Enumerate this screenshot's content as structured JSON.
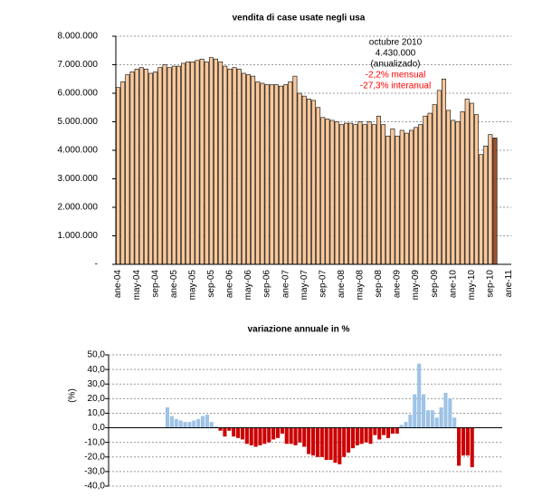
{
  "chart_data": [
    {
      "type": "bar",
      "title": "vendita di case usate negli usa",
      "categories": [
        "ane-04",
        null,
        null,
        null,
        "may-04",
        null,
        null,
        null,
        "sep-04",
        null,
        null,
        null,
        "ane-05",
        null,
        null,
        null,
        "may-05",
        null,
        null,
        null,
        "sep-05",
        null,
        null,
        null,
        "ane-06",
        null,
        null,
        null,
        "may-06",
        null,
        null,
        null,
        "sep-06",
        null,
        null,
        null,
        "ane-07",
        null,
        null,
        null,
        "may-07",
        null,
        null,
        null,
        "sep-07",
        null,
        null,
        null,
        "ane-08",
        null,
        null,
        null,
        "may-08",
        null,
        null,
        null,
        "sep-08",
        null,
        null,
        null,
        "ane-09",
        null,
        null,
        null,
        "may-09",
        null,
        null,
        null,
        "sep-09",
        null,
        null,
        null,
        "ane-10",
        null,
        null,
        null,
        "may-10",
        null,
        null,
        null,
        "sep-10",
        null,
        null,
        null,
        "ane-11"
      ],
      "values": [
        6200000,
        6400000,
        6650000,
        6750000,
        6850000,
        6900000,
        6850000,
        6700000,
        6750000,
        6900000,
        7000000,
        6900000,
        6950000,
        6950000,
        7050000,
        7100000,
        7100000,
        7150000,
        7200000,
        7100000,
        7250000,
        7200000,
        7100000,
        6950000,
        6850000,
        6900000,
        6850000,
        6700000,
        6650000,
        6600000,
        6400000,
        6350000,
        6300000,
        6300000,
        6300000,
        6250000,
        6300000,
        6400000,
        6600000,
        6000000,
        5900000,
        5800000,
        5750000,
        5500000,
        5150000,
        5100000,
        5050000,
        5000000,
        4900000,
        4950000,
        4950000,
        4900000,
        5000000,
        4900000,
        5000000,
        4900000,
        5200000,
        4900000,
        4500000,
        4750000,
        4500000,
        4700000,
        4600000,
        4700000,
        4800000,
        4900000,
        5200000,
        5300000,
        5600000,
        6100000,
        6500000,
        5400000,
        5050000,
        5000000,
        5350000,
        5800000,
        5650000,
        5250000,
        3850000,
        4150000,
        4550000,
        4430000,
        null,
        null,
        null
      ],
      "color": "#f9c89b",
      "last_color": "#a0522d",
      "ylim": [
        0,
        8000000
      ],
      "yticks": [
        {
          "value": 0,
          "label": "-"
        },
        {
          "value": 1000000,
          "label": "1.000.000"
        },
        {
          "value": 2000000,
          "label": "2.000.000"
        },
        {
          "value": 3000000,
          "label": "3.000.000"
        },
        {
          "value": 4000000,
          "label": "4.000.000"
        },
        {
          "value": 5000000,
          "label": "5.000.000"
        },
        {
          "value": 6000000,
          "label": "6.000.000"
        },
        {
          "value": 7000000,
          "label": "7.000.000"
        },
        {
          "value": 8000000,
          "label": "8.000.000"
        }
      ],
      "grid": true,
      "annotations": [
        {
          "text": "octubre 2010",
          "color": "#000000"
        },
        {
          "text": "4.430.000",
          "color": "#000000"
        },
        {
          "text": "(anualizado)",
          "color": "#000000"
        },
        {
          "text": "-2,2% mensual",
          "color": "#ff0000"
        },
        {
          "text": "-27,3% interanual",
          "color": "#ff0000"
        }
      ]
    },
    {
      "type": "bar",
      "title": "variazione annuale in %",
      "y_label": "(%)",
      "values": [
        null,
        null,
        null,
        null,
        null,
        null,
        null,
        null,
        null,
        null,
        null,
        null,
        14,
        8,
        6,
        5,
        4,
        4,
        5,
        6,
        8,
        9,
        4,
        1,
        -2,
        -6,
        -2,
        -6,
        -7,
        -8,
        -11,
        -12,
        -13,
        -12,
        -11,
        -10,
        -8,
        -7,
        -4,
        -11,
        -11,
        -12,
        -10,
        -13,
        -18,
        -19,
        -20,
        -20,
        -22,
        -22,
        -24,
        -25,
        -20,
        -17,
        -14,
        -12,
        -11,
        -10,
        -11,
        -5,
        -8,
        -5,
        -7,
        -4,
        -4,
        2,
        4,
        9,
        23,
        44,
        23,
        12,
        12,
        7,
        14,
        24,
        20,
        7,
        -26,
        -19,
        -19,
        -27
      ],
      "positive_color": "#9dc3e6",
      "negative_color": "#cc0000",
      "ylim": [
        -40,
        50
      ],
      "yticks": [
        {
          "value": -40,
          "label": "-40,0"
        },
        {
          "value": -30,
          "label": "-30,0"
        },
        {
          "value": -20,
          "label": "-20,0"
        },
        {
          "value": -10,
          "label": "-10,0"
        },
        {
          "value": 0,
          "label": "0,0"
        },
        {
          "value": 10,
          "label": "10,0"
        },
        {
          "value": 20,
          "label": "20,0"
        },
        {
          "value": 30,
          "label": "30,0"
        },
        {
          "value": 40,
          "label": "40,0"
        },
        {
          "value": 50,
          "label": "50,0"
        }
      ],
      "grid": true
    }
  ]
}
